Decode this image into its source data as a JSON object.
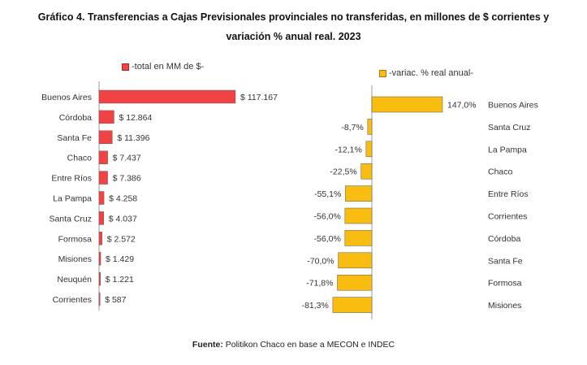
{
  "title_line1": "Gráfico 4. Transferencias a Cajas Previsionales provinciales no transferidas, en millones de $ corrientes y",
  "title_line2": "variación % anual real. 2023",
  "source_label": "Fuente:",
  "source_text": " Politikon Chaco en base a MECON e INDEC",
  "colors": {
    "left_bar": "#f04444",
    "right_bar": "#f9bd12",
    "bar_stroke": "#555555"
  },
  "chart_data": [
    {
      "type": "bar",
      "orientation": "horizontal",
      "legend": "-total en MM de $-",
      "categories": [
        "Buenos Aires",
        "Córdoba",
        "Santa Fe",
        "Chaco",
        "Entre Ríos",
        "La Pampa",
        "Santa Cruz",
        "Formosa",
        "Misiones",
        "Neuquén",
        "Corrientes"
      ],
      "values": [
        117167,
        12864,
        11396,
        7437,
        7386,
        4258,
        4037,
        2572,
        1429,
        1221,
        587
      ],
      "data_labels": [
        "$ 117.167",
        "$ 12.864",
        "$ 11.396",
        "$ 7.437",
        "$ 7.386",
        "$ 4.258",
        "$ 4.037",
        "$ 2.572",
        "$ 1.429",
        "$ 1.221",
        "$ 587"
      ],
      "color": "#f04444"
    },
    {
      "type": "bar",
      "orientation": "horizontal",
      "legend": "-variac. % real anual-",
      "categories": [
        "Buenos Aires",
        "Santa Cruz",
        "La Pampa",
        "Chaco",
        "Entre Ríos",
        "Corrientes",
        "Córdoba",
        "Santa Fe",
        "Formosa",
        "Misiones"
      ],
      "values": [
        147.0,
        -8.7,
        -12.1,
        -22.5,
        -55.1,
        -56.0,
        -56.0,
        -70.0,
        -71.8,
        -81.3
      ],
      "data_labels": [
        "147,0%",
        "-8,7%",
        "-12,1%",
        "-22,5%",
        "-55,1%",
        "-56,0%",
        "-56,0%",
        "-70,0%",
        "-71,8%",
        "-81,3%"
      ],
      "color": "#f9bd12"
    }
  ]
}
